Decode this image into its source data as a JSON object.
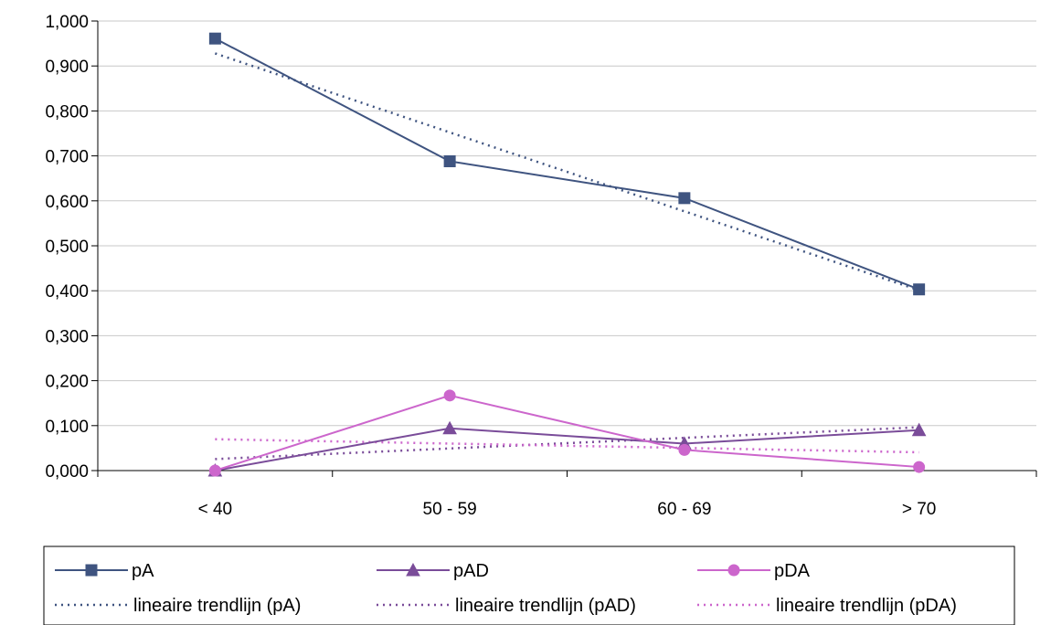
{
  "chart_data": {
    "type": "line",
    "categories": [
      "< 40",
      "50 - 59",
      "60 - 69",
      "> 70"
    ],
    "ylim": [
      0,
      1
    ],
    "yticks": [
      0,
      0.1,
      0.2,
      0.3,
      0.4,
      0.5,
      0.6,
      0.7,
      0.8,
      0.9,
      1.0
    ],
    "ytick_labels": [
      "0,000",
      "0,100",
      "0,200",
      "0,300",
      "0,400",
      "0,500",
      "0,600",
      "0,700",
      "0,800",
      "0,900",
      "1,000"
    ],
    "grid": true,
    "legend_position": "bottom",
    "series": [
      {
        "name": "pA",
        "values": [
          0.961,
          0.688,
          0.606,
          0.403
        ],
        "color": "#3f5480",
        "marker": "square"
      },
      {
        "name": "pAD",
        "values": [
          0.0,
          0.094,
          0.06,
          0.09
        ],
        "color": "#7a4c99",
        "marker": "triangle"
      },
      {
        "name": "pDA",
        "values": [
          0.0,
          0.167,
          0.046,
          0.008
        ],
        "color": "#cc66cc",
        "marker": "circle"
      }
    ],
    "trendlines": [
      {
        "name": "lineaire trendlijn (pA)",
        "color": "#3f5480"
      },
      {
        "name": "lineaire trendlijn (pAD)",
        "color": "#7a4c99"
      },
      {
        "name": "lineaire trendlijn (pDA)",
        "color": "#cc66cc"
      }
    ]
  }
}
